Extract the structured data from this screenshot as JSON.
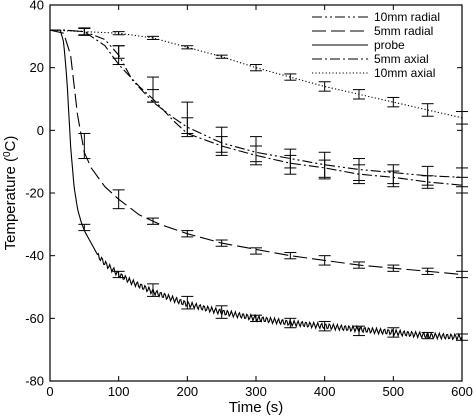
{
  "chart_data": {
    "type": "line",
    "title": "",
    "xlabel": "Time (s)",
    "ylabel_parts": [
      "Temperature (",
      "0",
      "C)"
    ],
    "xlim": [
      0,
      600
    ],
    "ylim": [
      -80,
      40
    ],
    "xticks": [
      0,
      100,
      200,
      300,
      400,
      500,
      600
    ],
    "yticks": [
      40,
      20,
      0,
      -20,
      -40,
      -60,
      -80
    ],
    "grid": false,
    "legend_position": "top-right",
    "series": [
      {
        "name": "10mm radial",
        "style": "dashdotdot",
        "x": [
          0,
          20,
          50,
          80,
          100,
          120,
          150,
          180,
          200,
          250,
          300,
          350,
          400,
          450,
          500,
          550,
          600
        ],
        "y": [
          32,
          32,
          31.5,
          29,
          24,
          16,
          9,
          4,
          1,
          -4,
          -7,
          -9,
          -11,
          -12.5,
          -13.5,
          -14.5,
          -15
        ],
        "errors": [
          {
            "x": 50,
            "y": 31.5,
            "e": 1.2
          },
          {
            "x": 100,
            "y": 24,
            "e": 3
          },
          {
            "x": 150,
            "y": 13,
            "e": 4
          },
          {
            "x": 200,
            "y": 4,
            "e": 5
          },
          {
            "x": 250,
            "y": -3,
            "e": 4
          },
          {
            "x": 300,
            "y": -6,
            "e": 4
          },
          {
            "x": 350,
            "y": -9,
            "e": 3
          },
          {
            "x": 400,
            "y": -11,
            "e": 4
          },
          {
            "x": 450,
            "y": -12.5,
            "e": 3.5
          },
          {
            "x": 500,
            "y": -14,
            "e": 3
          },
          {
            "x": 550,
            "y": -14.5,
            "e": 3
          },
          {
            "x": 600,
            "y": -15,
            "e": 3
          }
        ]
      },
      {
        "name": "5mm radial",
        "style": "longdash",
        "x": [
          0,
          20,
          30,
          40,
          50,
          60,
          80,
          100,
          130,
          160,
          200,
          250,
          300,
          350,
          400,
          450,
          500,
          550,
          600
        ],
        "y": [
          32,
          31,
          24,
          5,
          -7,
          -12,
          -18,
          -22,
          -27,
          -30,
          -33,
          -36,
          -38,
          -40,
          -41.5,
          -43,
          -44,
          -45,
          -46
        ],
        "errors": [
          {
            "x": 50,
            "y": -5,
            "e": 4
          },
          {
            "x": 100,
            "y": -22,
            "e": 3
          },
          {
            "x": 150,
            "y": -29,
            "e": 1
          },
          {
            "x": 200,
            "y": -33,
            "e": 1
          },
          {
            "x": 250,
            "y": -36,
            "e": 1
          },
          {
            "x": 300,
            "y": -38.5,
            "e": 1
          },
          {
            "x": 350,
            "y": -40,
            "e": 1
          },
          {
            "x": 400,
            "y": -41.5,
            "e": 1.5
          },
          {
            "x": 450,
            "y": -43,
            "e": 1
          },
          {
            "x": 500,
            "y": -44,
            "e": 1
          },
          {
            "x": 550,
            "y": -45,
            "e": 1
          },
          {
            "x": 600,
            "y": -46,
            "e": 1
          }
        ]
      },
      {
        "name": "probe",
        "style": "solid",
        "wavy": true,
        "x": [
          0,
          15,
          20,
          25,
          30,
          35,
          40,
          45,
          50,
          60,
          70,
          80,
          100,
          120,
          150,
          200,
          250,
          300,
          350,
          400,
          450,
          500,
          550,
          600
        ],
        "y": [
          32,
          32,
          28,
          15,
          -5,
          -18,
          -25,
          -29,
          -32,
          -36,
          -40,
          -42.5,
          -46,
          -48.5,
          -51.5,
          -55.5,
          -58,
          -60,
          -61.5,
          -62.5,
          -63.5,
          -64.5,
          -65.5,
          -66
        ],
        "errors": [
          {
            "x": 50,
            "y": -31,
            "e": 1
          },
          {
            "x": 100,
            "y": -46,
            "e": 1
          },
          {
            "x": 150,
            "y": -51,
            "e": 2
          },
          {
            "x": 200,
            "y": -55,
            "e": 2
          },
          {
            "x": 250,
            "y": -58,
            "e": 2
          },
          {
            "x": 300,
            "y": -60,
            "e": 1
          },
          {
            "x": 350,
            "y": -61.5,
            "e": 1.5
          },
          {
            "x": 400,
            "y": -62.5,
            "e": 1.5
          },
          {
            "x": 450,
            "y": -64,
            "e": 1.5
          },
          {
            "x": 500,
            "y": -64.5,
            "e": 1.5
          },
          {
            "x": 550,
            "y": -65.5,
            "e": 1
          },
          {
            "x": 600,
            "y": -66,
            "e": 1
          }
        ]
      },
      {
        "name": "5mm axial",
        "style": "dashdot",
        "x": [
          0,
          20,
          50,
          80,
          100,
          130,
          150,
          180,
          200,
          250,
          300,
          350,
          400,
          450,
          500,
          550,
          600
        ],
        "y": [
          32,
          32,
          31.5,
          27,
          21,
          14,
          10,
          3,
          -1,
          -5,
          -8,
          -10.5,
          -12,
          -14,
          -15,
          -16.5,
          -17.5
        ],
        "errors": [
          {
            "x": 100,
            "y": 25,
            "e": 2
          },
          {
            "x": 150,
            "y": 11,
            "e": 2
          },
          {
            "x": 200,
            "y": 1,
            "e": 3
          },
          {
            "x": 250,
            "y": -5,
            "e": 3
          },
          {
            "x": 300,
            "y": -8,
            "e": 3
          },
          {
            "x": 350,
            "y": -11,
            "e": 3
          },
          {
            "x": 400,
            "y": -12.5,
            "e": 3
          },
          {
            "x": 450,
            "y": -14,
            "e": 3
          },
          {
            "x": 500,
            "y": -15.5,
            "e": 2.5
          },
          {
            "x": 550,
            "y": -16.5,
            "e": 2
          },
          {
            "x": 600,
            "y": -17.5,
            "e": 2.5
          }
        ]
      },
      {
        "name": "10mm axial",
        "style": "dotted",
        "x": [
          0,
          50,
          100,
          150,
          200,
          250,
          300,
          350,
          400,
          450,
          500,
          550,
          600
        ],
        "y": [
          32,
          31.5,
          31,
          29.5,
          26.5,
          23.5,
          20,
          17,
          14,
          11.5,
          9,
          6.5,
          4
        ],
        "errors": [
          {
            "x": 50,
            "y": 31.5,
            "e": 1
          },
          {
            "x": 100,
            "y": 31,
            "e": 0.5
          },
          {
            "x": 150,
            "y": 29.5,
            "e": 0.5
          },
          {
            "x": 200,
            "y": 26.5,
            "e": 0.5
          },
          {
            "x": 250,
            "y": 23.5,
            "e": 0.5
          },
          {
            "x": 300,
            "y": 20,
            "e": 1
          },
          {
            "x": 350,
            "y": 17,
            "e": 1
          },
          {
            "x": 400,
            "y": 14,
            "e": 1.5
          },
          {
            "x": 450,
            "y": 11.5,
            "e": 1.5
          },
          {
            "x": 500,
            "y": 9,
            "e": 1.5
          },
          {
            "x": 550,
            "y": 6.5,
            "e": 2
          },
          {
            "x": 600,
            "y": 4,
            "e": 2
          }
        ]
      }
    ]
  }
}
